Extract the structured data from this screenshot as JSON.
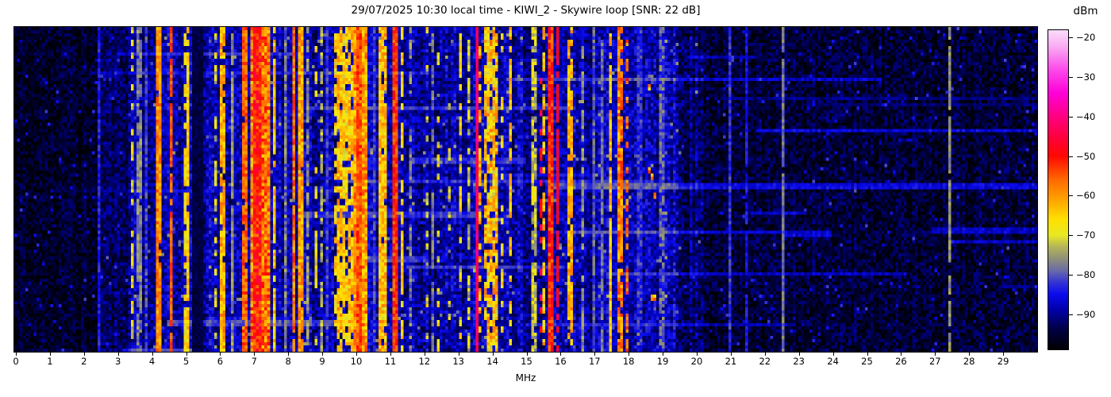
{
  "chart_data": {
    "type": "heatmap",
    "title": "29/07/2025 10:30 local time - KIWI_2 - Skywire loop [SNR: 22 dB]",
    "xlabel": "MHz",
    "x_range": [
      0,
      30.1
    ],
    "x_ticks": [
      0,
      1,
      2,
      3,
      4,
      5,
      6,
      7,
      8,
      9,
      10,
      11,
      12,
      13,
      14,
      15,
      16,
      17,
      18,
      19,
      20,
      21,
      22,
      23,
      24,
      25,
      26,
      27,
      28,
      29
    ],
    "colorbar": {
      "label": "dBm",
      "vmin": -99,
      "vmax": -18,
      "ticks": [
        -20,
        -30,
        -40,
        -50,
        -60,
        -70,
        -80,
        -90
      ],
      "tick_labels": [
        "−20",
        "−30",
        "−40",
        "−50",
        "−60",
        "−70",
        "−80",
        "−90"
      ]
    },
    "colormap_stops": [
      [
        -99,
        "#000002"
      ],
      [
        -94,
        "#000042"
      ],
      [
        -89,
        "#0000a8"
      ],
      [
        -85,
        "#0b0bee"
      ],
      [
        -82,
        "#3333d4"
      ],
      [
        -79,
        "#6a6aa8"
      ],
      [
        -76,
        "#8f8f78"
      ],
      [
        -73,
        "#b4b45a"
      ],
      [
        -70,
        "#e8e822"
      ],
      [
        -66,
        "#ffe000"
      ],
      [
        -61,
        "#ffa200"
      ],
      [
        -56,
        "#ff6a00"
      ],
      [
        -50,
        "#ff0800"
      ],
      [
        -45,
        "#ff0040"
      ],
      [
        -40,
        "#ff0080"
      ],
      [
        -34,
        "#ff00d8"
      ],
      [
        -28,
        "#fc4aeb"
      ],
      [
        -22,
        "#f9aef3"
      ],
      [
        -18,
        "#fbdcfb"
      ]
    ],
    "grid": {
      "rows": 102,
      "cols": 368
    },
    "noise_background": [
      {
        "f0": 0.0,
        "f1": 2.45,
        "dbm": -96,
        "var": 4.0
      },
      {
        "f0": 2.45,
        "f1": 3.35,
        "dbm": -93,
        "var": 4.5
      },
      {
        "f0": 3.35,
        "f1": 19.5,
        "dbm": -89,
        "var": 5.0
      },
      {
        "f0": 19.5,
        "f1": 20.3,
        "dbm": -92,
        "var": 5.0
      },
      {
        "f0": 20.3,
        "f1": 30.1,
        "dbm": -95,
        "var": 4.5
      }
    ],
    "signal_bands": [
      {
        "f0": 2.47,
        "f1": 2.55,
        "dbm": -84,
        "var": 3,
        "duty": 1
      },
      {
        "f0": 3.42,
        "f1": 3.55,
        "dbm": -70,
        "var": 5,
        "duty": 0.55
      },
      {
        "f0": 3.62,
        "f1": 3.75,
        "dbm": -77,
        "var": 4,
        "duty": 0.8
      },
      {
        "f0": 3.85,
        "f1": 3.95,
        "dbm": -82,
        "var": 4,
        "duty": 1
      },
      {
        "f0": 4.18,
        "f1": 4.32,
        "dbm": -59,
        "var": 5,
        "duty": 0.95
      },
      {
        "f0": 4.55,
        "f1": 4.65,
        "dbm": -55,
        "var": 4,
        "duty": 0.9
      },
      {
        "f0": 4.95,
        "f1": 5.05,
        "dbm": -67,
        "var": 5,
        "duty": 0.6
      },
      {
        "f0": 5.08,
        "f1": 5.16,
        "dbm": -65,
        "var": 5,
        "duty": 0.85
      },
      {
        "f0": 5.25,
        "f1": 5.6,
        "dbm": -94,
        "var": 2,
        "duty": 1,
        "dark": true
      },
      {
        "f0": 5.85,
        "f1": 5.95,
        "dbm": -70,
        "var": 6,
        "duty": 0.4
      },
      {
        "f0": 6.05,
        "f1": 6.22,
        "dbm": -62,
        "var": 6,
        "duty": 0.95
      },
      {
        "f0": 6.38,
        "f1": 6.45,
        "dbm": -76,
        "var": 4,
        "duty": 0.9
      },
      {
        "f0": 6.7,
        "f1": 6.87,
        "dbm": -56,
        "var": 5,
        "duty": 0.95
      },
      {
        "f0": 6.98,
        "f1": 7.5,
        "dbm": -57,
        "var": 8,
        "duty": 1
      },
      {
        "f0": 7.06,
        "f1": 7.28,
        "dbm": -51,
        "var": 7,
        "duty": 1
      },
      {
        "f0": 7.58,
        "f1": 7.72,
        "dbm": -64,
        "var": 6,
        "duty": 0.8
      },
      {
        "f0": 7.95,
        "f1": 8.05,
        "dbm": -78,
        "var": 5,
        "duty": 1
      },
      {
        "f0": 8.18,
        "f1": 8.3,
        "dbm": -57,
        "var": 6,
        "duty": 0.9
      },
      {
        "f0": 8.33,
        "f1": 8.52,
        "dbm": -61,
        "var": 6,
        "duty": 0.95
      },
      {
        "f0": 8.62,
        "f1": 8.68,
        "dbm": -76,
        "var": 4,
        "duty": 0.8
      },
      {
        "f0": 8.85,
        "f1": 8.95,
        "dbm": -68,
        "var": 6,
        "duty": 0.35
      },
      {
        "f0": 9.02,
        "f1": 9.1,
        "dbm": -74,
        "var": 5,
        "duty": 0.7
      },
      {
        "f0": 9.18,
        "f1": 9.24,
        "dbm": -82,
        "var": 4,
        "duty": 1
      },
      {
        "f0": 9.38,
        "f1": 9.48,
        "dbm": -66,
        "var": 6,
        "duty": 0.6
      },
      {
        "f0": 9.52,
        "f1": 9.62,
        "dbm": -63,
        "var": 6,
        "duty": 0.85
      },
      {
        "f0": 9.68,
        "f1": 9.78,
        "dbm": -66,
        "var": 6,
        "duty": 0.7
      },
      {
        "f0": 9.85,
        "f1": 9.95,
        "dbm": -64,
        "var": 6,
        "duty": 0.8
      },
      {
        "f0": 10.0,
        "f1": 10.35,
        "dbm": -60,
        "var": 7,
        "duty": 1
      },
      {
        "f0": 10.05,
        "f1": 10.22,
        "dbm": -55,
        "var": 6,
        "duty": 1
      },
      {
        "f0": 10.55,
        "f1": 10.62,
        "dbm": -82,
        "var": 4,
        "duty": 1
      },
      {
        "f0": 10.75,
        "f1": 10.98,
        "dbm": -64,
        "var": 7,
        "duty": 0.9
      },
      {
        "f0": 11.15,
        "f1": 11.27,
        "dbm": -53,
        "var": 5,
        "duty": 1
      },
      {
        "f0": 11.38,
        "f1": 11.45,
        "dbm": -66,
        "var": 5,
        "duty": 0.5
      },
      {
        "f0": 11.6,
        "f1": 11.68,
        "dbm": -77,
        "var": 5,
        "duty": 0.6
      },
      {
        "f0": 11.82,
        "f1": 11.9,
        "dbm": -70,
        "var": 7,
        "duty": 0.25
      },
      {
        "f0": 12.1,
        "f1": 12.2,
        "dbm": -70,
        "var": 7,
        "duty": 0.25
      },
      {
        "f0": 12.28,
        "f1": 12.35,
        "dbm": -78,
        "var": 4,
        "duty": 0.5
      },
      {
        "f0": 12.45,
        "f1": 12.55,
        "dbm": -68,
        "var": 6,
        "duty": 0.3
      },
      {
        "f0": 12.75,
        "f1": 12.85,
        "dbm": -70,
        "var": 6,
        "duty": 0.3
      },
      {
        "f0": 13.05,
        "f1": 13.2,
        "dbm": -67,
        "var": 6,
        "duty": 0.5
      },
      {
        "f0": 13.3,
        "f1": 13.45,
        "dbm": -72,
        "var": 6,
        "duty": 0.7
      },
      {
        "f0": 13.55,
        "f1": 13.65,
        "dbm": -42,
        "var": 4,
        "duty": 1
      },
      {
        "f0": 13.68,
        "f1": 13.75,
        "dbm": -62,
        "var": 7,
        "duty": 0.5
      },
      {
        "f0": 13.85,
        "f1": 14.2,
        "dbm": -64,
        "var": 8,
        "duty": 0.75
      },
      {
        "f0": 14.3,
        "f1": 14.4,
        "dbm": -68,
        "var": 6,
        "duty": 0.4
      },
      {
        "f0": 14.55,
        "f1": 14.68,
        "dbm": -64,
        "var": 6,
        "duty": 0.6
      },
      {
        "f0": 15.25,
        "f1": 15.35,
        "dbm": -72,
        "var": 6,
        "duty": 0.7
      },
      {
        "f0": 15.42,
        "f1": 15.5,
        "dbm": -45,
        "var": 6,
        "duty": 0.3
      },
      {
        "f0": 15.58,
        "f1": 15.66,
        "dbm": -64,
        "var": 6,
        "duty": 0.6
      },
      {
        "f0": 15.72,
        "f1": 15.88,
        "dbm": -52,
        "var": 6,
        "duty": 1
      },
      {
        "f0": 15.95,
        "f1": 16.02,
        "dbm": -47,
        "var": 4,
        "duty": 0.85
      },
      {
        "f0": 16.28,
        "f1": 16.42,
        "dbm": -62,
        "var": 5,
        "duty": 0.75
      },
      {
        "f0": 16.58,
        "f1": 16.64,
        "dbm": -78,
        "var": 4,
        "duty": 0.6
      },
      {
        "f0": 16.72,
        "f1": 16.78,
        "dbm": -76,
        "var": 4,
        "duty": 0.8
      },
      {
        "f0": 17.0,
        "f1": 17.1,
        "dbm": -80,
        "var": 4,
        "duty": 1
      },
      {
        "f0": 17.22,
        "f1": 17.3,
        "dbm": -79,
        "var": 4,
        "duty": 0.9
      },
      {
        "f0": 17.5,
        "f1": 17.62,
        "dbm": -64,
        "var": 6,
        "duty": 0.85
      },
      {
        "f0": 17.78,
        "f1": 17.95,
        "dbm": -58,
        "var": 7,
        "duty": 0.85
      },
      {
        "f0": 18.02,
        "f1": 18.1,
        "dbm": -56,
        "var": 6,
        "duty": 0.5
      },
      {
        "f0": 18.35,
        "f1": 18.45,
        "dbm": -83,
        "var": 4,
        "duty": 1
      },
      {
        "f0": 18.68,
        "f1": 18.88,
        "dbm": -60,
        "var": 8,
        "duty": 0.12
      },
      {
        "f0": 19.0,
        "f1": 19.15,
        "dbm": -80,
        "var": 5,
        "duty": 0.9
      },
      {
        "f0": 21.0,
        "f1": 21.08,
        "dbm": -82,
        "var": 3,
        "duty": 1
      },
      {
        "f0": 21.55,
        "f1": 21.62,
        "dbm": -85,
        "var": 3,
        "duty": 0.9
      },
      {
        "f0": 21.88,
        "f1": 21.95,
        "dbm": -70,
        "var": 6,
        "duty": 0.04
      },
      {
        "f0": 22.05,
        "f1": 22.12,
        "dbm": -80,
        "var": 4,
        "duty": 0.5
      },
      {
        "f0": 22.6,
        "f1": 22.68,
        "dbm": -78,
        "var": 3,
        "duty": 0.95
      },
      {
        "f0": 27.5,
        "f1": 27.58,
        "dbm": -76,
        "var": 3,
        "duty": 0.85
      }
    ],
    "streaks": {
      "count": 30,
      "boost_db": [
        2.5,
        9
      ],
      "max_len_mhz": 11
    },
    "speckle_probability": 0.022,
    "seed": 20250729
  }
}
